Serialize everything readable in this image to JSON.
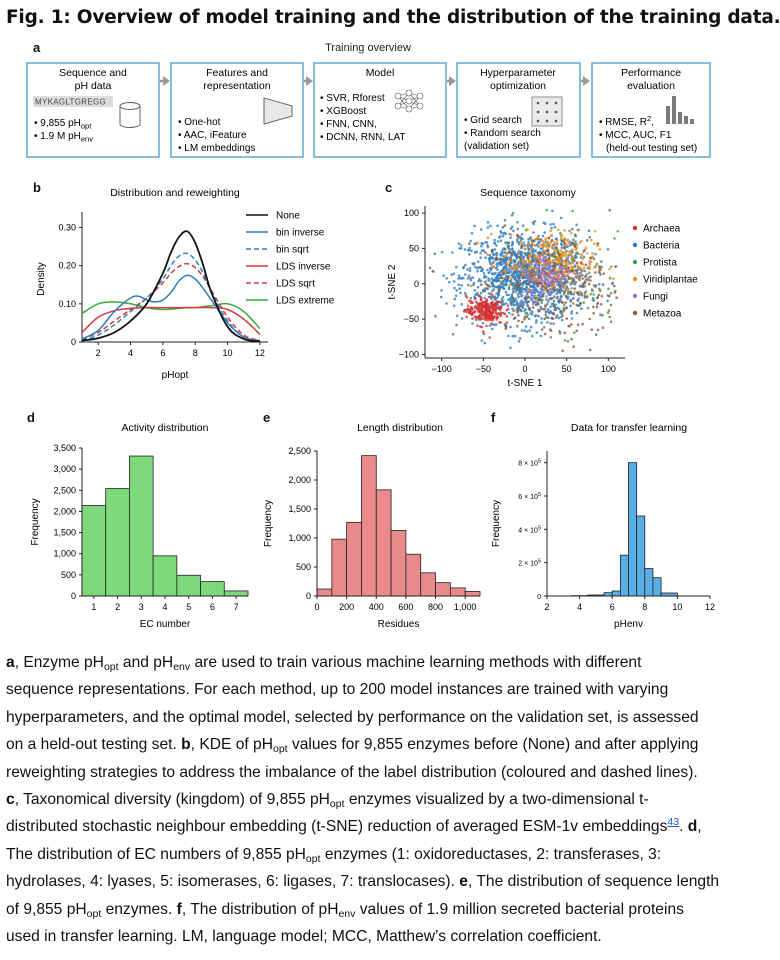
{
  "figure": {
    "title": "Fig. 1: Overview of model training and the distribution of the training data."
  },
  "panel_a": {
    "label": "a",
    "title": "Training overview",
    "boxes": [
      {
        "title_lines": [
          "Sequence and",
          "pH data"
        ],
        "sequence": "MYKAGLTGREGG",
        "bullet1_main": "9,855 pH",
        "bullet1_sub": "opt",
        "bullet2_main": "1.9 M pH",
        "bullet2_sub": "env"
      },
      {
        "title_lines": [
          "Features and",
          "representation"
        ],
        "bullets": [
          "One-hot",
          "AAC, iFeature",
          "LM embeddings"
        ]
      },
      {
        "title_lines": [
          "Model"
        ],
        "bullets": [
          "SVR, Rforest",
          "XGBoost",
          "FNN, CNN,",
          "DCNN, RNN, LAT"
        ]
      },
      {
        "title_lines": [
          "Hyperparameter",
          "optimization"
        ],
        "bullets": [
          "Grid search",
          "Random search"
        ],
        "note": "(validation set)"
      },
      {
        "title_lines": [
          "Performance",
          "evaluation"
        ],
        "bullet1_main": "RMSE, R",
        "bullet1_sup": "2",
        "bullet1_tail": ",",
        "bullet2": "MCC, AUC, F1",
        "note": "(held-out testing set)"
      }
    ],
    "colors": {
      "box_border": "#3a8fc7",
      "arrow": "#9a9a9a"
    }
  },
  "panel_b": {
    "label": "b",
    "chart_data": {
      "type": "line",
      "title": "Distribution and reweighting",
      "xlabel": "pHopt",
      "ylabel": "Density",
      "xlim": [
        1,
        12.5
      ],
      "ylim": [
        0,
        0.33
      ],
      "xticks": [
        2,
        4,
        6,
        8,
        10,
        12
      ],
      "yticks": [
        0,
        0.1,
        0.2,
        0.3
      ],
      "yticklabels": [
        "0",
        "0.10",
        "0.20",
        "0.30"
      ],
      "legend_position": "right",
      "series": [
        {
          "name": "None",
          "color": "#111111",
          "dash": "solid",
          "x": [
            1,
            2,
            3,
            4,
            5,
            6,
            6.5,
            7,
            7.5,
            8,
            8.5,
            9,
            10,
            11,
            12
          ],
          "y": [
            0.004,
            0.01,
            0.025,
            0.055,
            0.1,
            0.18,
            0.235,
            0.275,
            0.29,
            0.26,
            0.2,
            0.13,
            0.04,
            0.008,
            0.002
          ]
        },
        {
          "name": "bin inverse",
          "color": "#2f7ebd",
          "dash": "solid",
          "x": [
            1,
            2,
            3,
            4,
            4.5,
            5,
            5.5,
            6,
            6.5,
            7,
            7.5,
            8,
            8.5,
            9,
            10,
            11,
            12
          ],
          "y": [
            0.008,
            0.03,
            0.08,
            0.115,
            0.12,
            0.11,
            0.105,
            0.11,
            0.13,
            0.16,
            0.175,
            0.165,
            0.14,
            0.11,
            0.05,
            0.013,
            0.003
          ]
        },
        {
          "name": "bin sqrt",
          "color": "#2f7ebd",
          "dash": "dashed",
          "x": [
            1,
            2,
            3,
            4,
            5,
            6,
            6.5,
            7,
            7.5,
            8,
            8.5,
            9,
            10,
            11,
            12
          ],
          "y": [
            0.005,
            0.018,
            0.045,
            0.08,
            0.115,
            0.165,
            0.2,
            0.225,
            0.232,
            0.215,
            0.18,
            0.13,
            0.055,
            0.013,
            0.003
          ]
        },
        {
          "name": "LDS inverse",
          "color": "#d63a3a",
          "dash": "solid",
          "x": [
            1,
            2,
            3,
            4,
            5,
            6,
            7,
            8,
            9,
            10,
            11,
            12
          ],
          "y": [
            0.025,
            0.065,
            0.082,
            0.088,
            0.09,
            0.09,
            0.09,
            0.09,
            0.09,
            0.085,
            0.06,
            0.02
          ]
        },
        {
          "name": "LDS sqrt",
          "color": "#d63a3a",
          "dash": "dashed",
          "x": [
            1,
            2,
            3,
            4,
            5,
            6,
            6.5,
            7,
            7.5,
            8,
            8.5,
            9,
            10,
            11,
            12
          ],
          "y": [
            0.008,
            0.025,
            0.055,
            0.085,
            0.115,
            0.155,
            0.18,
            0.198,
            0.205,
            0.195,
            0.17,
            0.135,
            0.065,
            0.018,
            0.004
          ]
        },
        {
          "name": "LDS extreme",
          "color": "#3aaa3a",
          "dash": "solid",
          "x": [
            1,
            2,
            3,
            4,
            5,
            6,
            7,
            7.5,
            8,
            9,
            10,
            11,
            12
          ],
          "y": [
            0.075,
            0.1,
            0.105,
            0.1,
            0.09,
            0.085,
            0.088,
            0.09,
            0.09,
            0.095,
            0.1,
            0.08,
            0.035
          ]
        }
      ]
    }
  },
  "panel_c": {
    "label": "c",
    "chart_data": {
      "type": "scatter",
      "title": "Sequence taxonomy",
      "xlabel": "t-SNE 1",
      "ylabel": "t-SNE 2",
      "xlim": [
        -120,
        120
      ],
      "ylim": [
        -105,
        110
      ],
      "xticks": [
        -100,
        -50,
        0,
        50,
        100
      ],
      "yticks": [
        -100,
        -50,
        0,
        50,
        100
      ],
      "legend_position": "right",
      "series": [
        {
          "name": "Archaea",
          "color": "#d9312f",
          "cx": -48,
          "cy": -38,
          "sx": 11,
          "sy": 10,
          "n": 230
        },
        {
          "name": "Bacteria",
          "color": "#2f7ebd",
          "cx": 0,
          "cy": 10,
          "sx": 38,
          "sy": 32,
          "n": 1300
        },
        {
          "name": "Protista",
          "color": "#3aa34a",
          "cx": 45,
          "cy": 5,
          "sx": 40,
          "sy": 38,
          "n": 90
        },
        {
          "name": "Viridiplantae",
          "color": "#f08c1a",
          "cx": 28,
          "cy": 30,
          "sx": 28,
          "sy": 22,
          "n": 330
        },
        {
          "name": "Fungi",
          "color": "#a474c8",
          "cx": 30,
          "cy": 10,
          "sx": 20,
          "sy": 18,
          "n": 170
        },
        {
          "name": "Metazoa",
          "color": "#8a5a3c",
          "cx": 35,
          "cy": -5,
          "sx": 42,
          "sy": 40,
          "n": 260
        }
      ]
    }
  },
  "panel_d": {
    "label": "d",
    "chart_data": {
      "type": "bar",
      "title": "Activity distribution",
      "xlabel": "EC number",
      "ylabel": "Frequency",
      "categories": [
        "1",
        "2",
        "3",
        "4",
        "5",
        "6",
        "7"
      ],
      "values": [
        2140,
        2540,
        3310,
        950,
        490,
        340,
        120
      ],
      "ylim": [
        0,
        3500
      ],
      "yticks": [
        0,
        500,
        1000,
        1500,
        2000,
        2500,
        3000,
        3500
      ],
      "yticklabels": [
        "0",
        "500",
        "1,000",
        "1,500",
        "2,000",
        "2,500",
        "3,000",
        "3,500"
      ],
      "color": "#7ed97b"
    }
  },
  "panel_e": {
    "label": "e",
    "chart_data": {
      "type": "bar",
      "title": "Length distribution",
      "xlabel": "Residues",
      "ylabel": "Frequency",
      "bin_edges": [
        0,
        100,
        200,
        300,
        400,
        500,
        600,
        700,
        800,
        900,
        1000,
        1100
      ],
      "values": [
        120,
        980,
        1270,
        2420,
        1830,
        1130,
        720,
        400,
        230,
        140,
        80
      ],
      "xlim": [
        0,
        1100
      ],
      "ylim": [
        0,
        2500
      ],
      "xticks": [
        0,
        200,
        400,
        600,
        800,
        1000
      ],
      "xticklabels": [
        "0",
        "200",
        "400",
        "600",
        "800",
        "1,000"
      ],
      "yticks": [
        0,
        500,
        1000,
        1500,
        2000,
        2500
      ],
      "yticklabels": [
        "0",
        "500",
        "1,000",
        "1,500",
        "2,000",
        "2,500"
      ],
      "color": "#ea8a8a"
    }
  },
  "panel_f": {
    "label": "f",
    "chart_data": {
      "type": "bar",
      "title": "Data for transfer learning",
      "xlabel": "pHenv",
      "ylabel": "Frequency",
      "bin_edges": [
        3.5,
        4.5,
        5.5,
        6,
        6.5,
        7,
        7.5,
        8,
        8.5,
        9,
        10
      ],
      "values": [
        2000,
        6000,
        20000,
        30000,
        245000,
        800000,
        480000,
        165000,
        110000,
        18000
      ],
      "xlim": [
        2,
        12
      ],
      "ylim": [
        0,
        870000
      ],
      "xticks": [
        2,
        4,
        6,
        8,
        10,
        12
      ],
      "yticks": [
        0,
        200000,
        400000,
        600000,
        800000
      ],
      "yticklabels": [
        "0",
        "2 × 10",
        "4 × 10",
        "6 × 10",
        "8 × 10"
      ],
      "ytick_exponent": "5",
      "color": "#5aaee6"
    }
  },
  "caption": {
    "l1_a": "a",
    "l1_t1": ", Enzyme pH",
    "l1_s1": "opt",
    "l1_t2": " and pH",
    "l1_s2": "env",
    "l1_t3": " are used to train various machine learning methods with different",
    "l2": "sequence representations. For each method, up to 200 model instances are trained with varying",
    "l3": "hyperparameters, and the optimal model, selected by performance on the validation set, is assessed",
    "l4_t1": "on a held-out testing set. ",
    "l4_b": "b",
    "l4_t2": ", KDE of pH",
    "l4_s1": "opt",
    "l4_t3": " values for 9,855 enzymes before (None) and after applying",
    "l5": "reweighting strategies to address the imbalance of the label distribution (coloured and dashed lines).",
    "l6_c": "c",
    "l6_t1": ", Taxonomical diversity (kingdom) of 9,855 pH",
    "l6_s1": "opt",
    "l6_t2": " enzymes visualized by a two-dimensional t-",
    "l7_t1": "distributed stochastic neighbour embedding (t-SNE) reduction of averaged ESM-1v embeddings",
    "l7_ref": "43",
    "l7_t2": ". ",
    "l7_d": "d",
    "l7_t3": ",",
    "l8_t1": "The distribution of EC numbers of 9,855 pH",
    "l8_s1": "opt",
    "l8_t2": " enzymes (1: oxidoreductases, 2: transferases, 3:",
    "l9_t1": "hydrolases, 4: lyases, 5: isomerases, 6: ligases, 7: translocases). ",
    "l9_e": "e",
    "l9_t2": ", The distribution of sequence length",
    "l10_t1": "of 9,855 pH",
    "l10_s1": "opt",
    "l10_t2": " enzymes. ",
    "l10_f": "f",
    "l10_t3": ", The distribution of pH",
    "l10_s2": "env",
    "l10_t4": " values of 1.9 million secreted bacterial proteins",
    "l11": "used in transfer learning. LM, language model; MCC, Matthew’s correlation coefficient."
  }
}
